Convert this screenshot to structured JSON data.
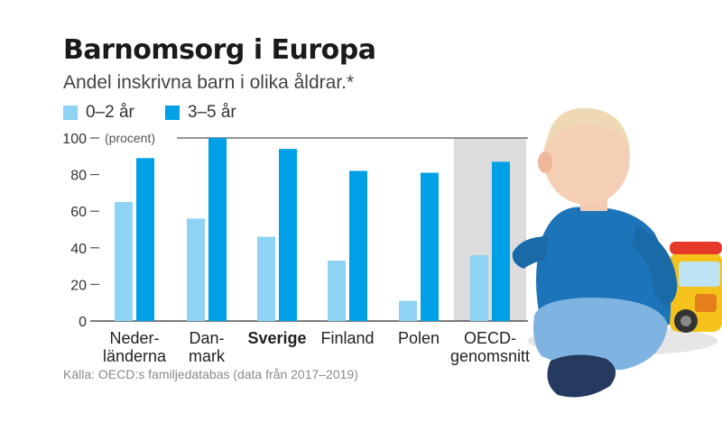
{
  "title": "Barnomsorg i Europa",
  "subtitle": "Andel inskrivna barn i olika åldrar.*",
  "source": "Källa: OECD:s familjedatabas (data från 2017–2019)",
  "colors": {
    "series_light": "#8fd3f4",
    "series_dark": "#00a0e6",
    "highlight_band": "#dcdcdc",
    "axis": "#333333",
    "gridline": "#555555"
  },
  "chart_data": {
    "type": "bar",
    "categories": [
      [
        "Neder-",
        "länderna"
      ],
      [
        "Dan-",
        "mark"
      ],
      [
        "Sverige"
      ],
      [
        "Finland"
      ],
      [
        "Polen"
      ],
      [
        "OECD-",
        "genomsnitt"
      ]
    ],
    "bold_category": "Sverige",
    "highlighted_category": "OECD-genomsnitt",
    "series": [
      {
        "name": "0–2 år",
        "values": [
          65,
          56,
          46,
          33,
          11,
          36
        ]
      },
      {
        "name": "3–5 år",
        "values": [
          89,
          100,
          94,
          82,
          81,
          87
        ]
      }
    ],
    "y_ticks": [
      0,
      20,
      40,
      60,
      80,
      100
    ],
    "ylim": [
      0,
      100
    ],
    "y_unit_label": "(procent)",
    "legend_position": "top-left",
    "grid": false
  },
  "image": {
    "icon": "baby-with-toy-illustration"
  }
}
